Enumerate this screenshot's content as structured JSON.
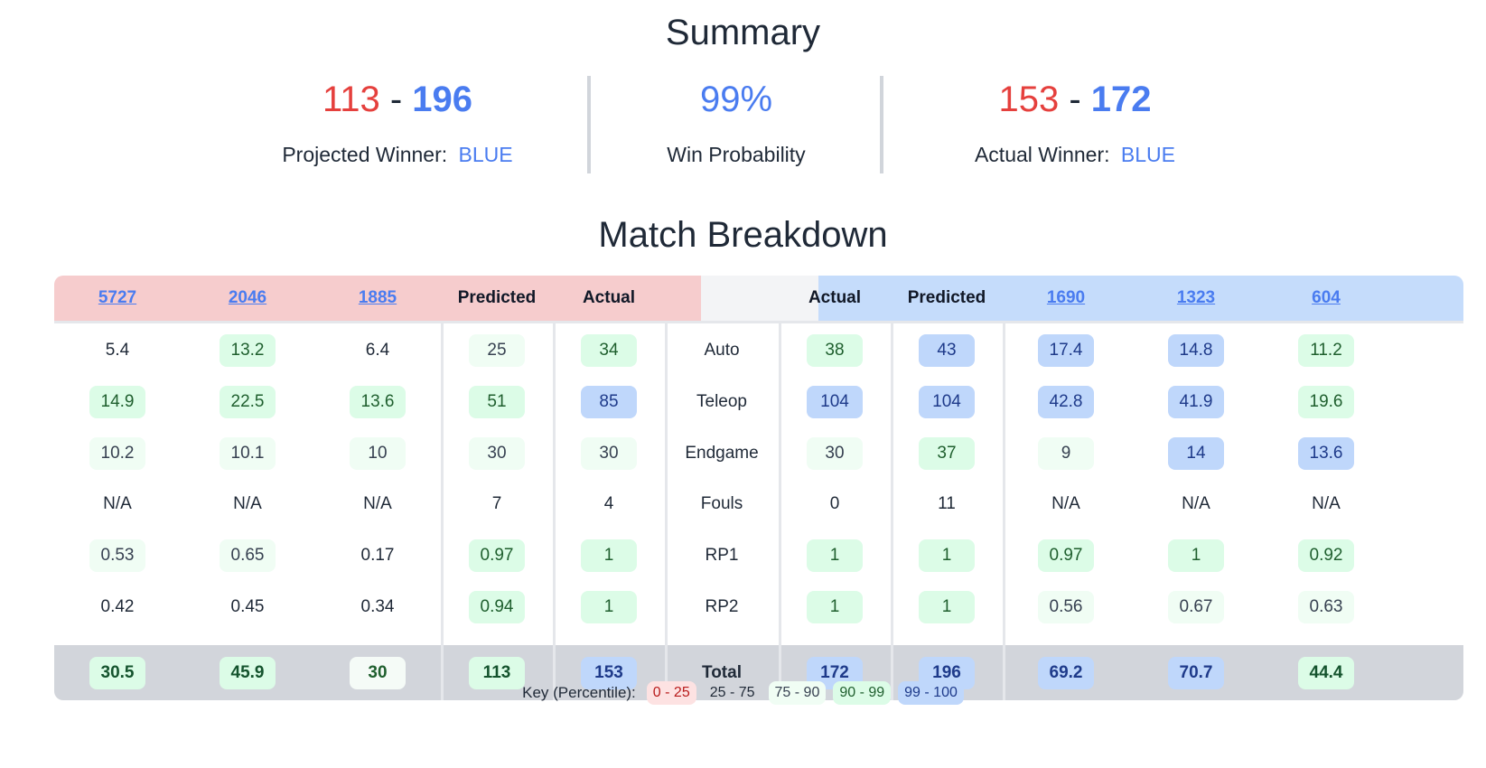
{
  "summary": {
    "title": "Summary",
    "projected": {
      "red": "113",
      "dash": "-",
      "blue": "196",
      "label": "Projected Winner:",
      "winner": "BLUE"
    },
    "probability": {
      "value": "99%",
      "label": "Win Probability"
    },
    "actual": {
      "red": "153",
      "dash": "-",
      "blue": "172",
      "label": "Actual Winner:",
      "winner": "BLUE"
    }
  },
  "breakdown": {
    "title": "Match Breakdown",
    "headers": [
      "5727",
      "2046",
      "1885",
      "Predicted",
      "Actual",
      "",
      "Actual",
      "Predicted",
      "1690",
      "1323",
      "604"
    ],
    "rows": [
      {
        "label": "Auto",
        "cells": [
          [
            "5.4",
            "none"
          ],
          [
            "13.2",
            "green"
          ],
          [
            "6.4",
            "none"
          ],
          [
            "25",
            "light"
          ],
          [
            "34",
            "green"
          ],
          [
            "38",
            "green"
          ],
          [
            "43",
            "blue"
          ],
          [
            "17.4",
            "blue"
          ],
          [
            "14.8",
            "blue"
          ],
          [
            "11.2",
            "green"
          ]
        ]
      },
      {
        "label": "Teleop",
        "cells": [
          [
            "14.9",
            "green"
          ],
          [
            "22.5",
            "green"
          ],
          [
            "13.6",
            "green"
          ],
          [
            "51",
            "green"
          ],
          [
            "85",
            "blue"
          ],
          [
            "104",
            "blue"
          ],
          [
            "104",
            "blue"
          ],
          [
            "42.8",
            "blue"
          ],
          [
            "41.9",
            "blue"
          ],
          [
            "19.6",
            "green"
          ]
        ]
      },
      {
        "label": "Endgame",
        "cells": [
          [
            "10.2",
            "light"
          ],
          [
            "10.1",
            "light"
          ],
          [
            "10",
            "light"
          ],
          [
            "30",
            "light"
          ],
          [
            "30",
            "light"
          ],
          [
            "30",
            "light"
          ],
          [
            "37",
            "green"
          ],
          [
            "9",
            "light"
          ],
          [
            "14",
            "blue"
          ],
          [
            "13.6",
            "blue"
          ]
        ]
      },
      {
        "label": "Fouls",
        "cells": [
          [
            "N/A",
            "none"
          ],
          [
            "N/A",
            "none"
          ],
          [
            "N/A",
            "none"
          ],
          [
            "7",
            "none"
          ],
          [
            "4",
            "none"
          ],
          [
            "0",
            "none"
          ],
          [
            "11",
            "none"
          ],
          [
            "N/A",
            "none"
          ],
          [
            "N/A",
            "none"
          ],
          [
            "N/A",
            "none"
          ]
        ]
      },
      {
        "label": "RP1",
        "cells": [
          [
            "0.53",
            "light"
          ],
          [
            "0.65",
            "light"
          ],
          [
            "0.17",
            "none"
          ],
          [
            "0.97",
            "green"
          ],
          [
            "1",
            "green"
          ],
          [
            "1",
            "green"
          ],
          [
            "1",
            "green"
          ],
          [
            "0.97",
            "green"
          ],
          [
            "1",
            "green"
          ],
          [
            "0.92",
            "green"
          ]
        ]
      },
      {
        "label": "RP2",
        "cells": [
          [
            "0.42",
            "none"
          ],
          [
            "0.45",
            "none"
          ],
          [
            "0.34",
            "none"
          ],
          [
            "0.94",
            "green"
          ],
          [
            "1",
            "green"
          ],
          [
            "1",
            "green"
          ],
          [
            "1",
            "green"
          ],
          [
            "0.56",
            "light"
          ],
          [
            "0.67",
            "light"
          ],
          [
            "0.63",
            "light"
          ]
        ]
      }
    ],
    "total": {
      "label": "Total",
      "cells": [
        [
          "30.5",
          "green"
        ],
        [
          "45.9",
          "green"
        ],
        [
          "30",
          "light"
        ],
        [
          "113",
          "green"
        ],
        [
          "153",
          "blue"
        ],
        [
          "172",
          "blue"
        ],
        [
          "196",
          "blue"
        ],
        [
          "69.2",
          "blue"
        ],
        [
          "70.7",
          "blue"
        ],
        [
          "44.4",
          "green"
        ]
      ]
    }
  },
  "key": {
    "label": "Key (Percentile):",
    "items": [
      {
        "text": "0 - 25",
        "tier": "red"
      },
      {
        "text": "25 - 75",
        "tier": "none"
      },
      {
        "text": "75 - 90",
        "tier": "light"
      },
      {
        "text": "90 - 99",
        "tier": "green"
      },
      {
        "text": "99 - 100",
        "tier": "blue"
      }
    ]
  },
  "colors": {
    "red": "#e5403d",
    "blue": "#4a7cf0",
    "red_header": "#f6cccd",
    "blue_header": "#c5dcfb",
    "total_bg": "#d2d5db"
  }
}
